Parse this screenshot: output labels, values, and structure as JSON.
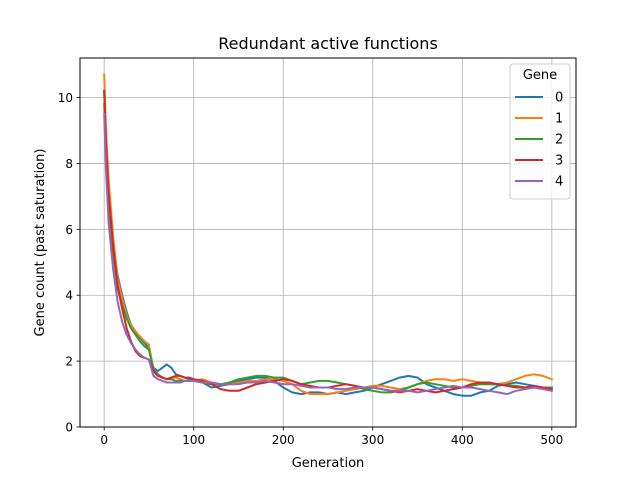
{
  "chart_data": {
    "type": "line",
    "title": "Redundant active functions",
    "xlabel": "Generation",
    "ylabel": "Gene count (past saturation)",
    "xlim": [
      -27,
      527
    ],
    "ylim": [
      0,
      11.2
    ],
    "xticks": [
      0,
      100,
      200,
      300,
      400,
      500
    ],
    "yticks": [
      0,
      2,
      4,
      6,
      8,
      10
    ],
    "grid": true,
    "legend": {
      "title": "Gene",
      "placement": "top-right"
    },
    "x": [
      0,
      2,
      5,
      10,
      15,
      20,
      25,
      30,
      35,
      40,
      45,
      50,
      55,
      60,
      65,
      70,
      75,
      80,
      85,
      90,
      95,
      100,
      110,
      120,
      130,
      140,
      150,
      160,
      170,
      180,
      190,
      200,
      210,
      220,
      230,
      240,
      250,
      260,
      270,
      280,
      290,
      300,
      310,
      320,
      330,
      340,
      350,
      360,
      370,
      380,
      390,
      400,
      410,
      420,
      430,
      440,
      450,
      460,
      470,
      480,
      490,
      500
    ],
    "series": [
      {
        "name": "0",
        "color": "#1f77b4",
        "values": [
          10.2,
          8.5,
          7.0,
          5.6,
          4.6,
          4.0,
          3.5,
          3.1,
          2.9,
          2.7,
          2.55,
          2.4,
          1.8,
          1.7,
          1.8,
          1.9,
          1.8,
          1.6,
          1.55,
          1.5,
          1.45,
          1.4,
          1.35,
          1.2,
          1.25,
          1.3,
          1.4,
          1.45,
          1.5,
          1.5,
          1.4,
          1.2,
          1.05,
          1.0,
          1.05,
          1.05,
          1.0,
          1.05,
          1.0,
          1.05,
          1.1,
          1.2,
          1.3,
          1.4,
          1.5,
          1.55,
          1.5,
          1.3,
          1.2,
          1.1,
          1.0,
          0.95,
          0.95,
          1.05,
          1.1,
          1.25,
          1.3,
          1.35,
          1.3,
          1.25,
          1.2,
          1.2
        ]
      },
      {
        "name": "1",
        "color": "#ff7f0e",
        "values": [
          10.7,
          9.0,
          7.5,
          5.8,
          4.5,
          3.9,
          3.4,
          3.1,
          2.9,
          2.75,
          2.6,
          2.5,
          1.75,
          1.6,
          1.5,
          1.45,
          1.5,
          1.5,
          1.45,
          1.4,
          1.4,
          1.4,
          1.45,
          1.35,
          1.3,
          1.3,
          1.35,
          1.4,
          1.4,
          1.45,
          1.45,
          1.4,
          1.3,
          1.1,
          1.0,
          1.0,
          1.0,
          1.05,
          1.1,
          1.15,
          1.2,
          1.25,
          1.25,
          1.2,
          1.15,
          1.2,
          1.3,
          1.4,
          1.45,
          1.45,
          1.4,
          1.45,
          1.4,
          1.35,
          1.3,
          1.3,
          1.35,
          1.45,
          1.55,
          1.6,
          1.55,
          1.45
        ]
      },
      {
        "name": "2",
        "color": "#2ca02c",
        "values": [
          9.8,
          8.2,
          6.8,
          5.3,
          4.2,
          3.7,
          3.3,
          3.0,
          2.8,
          2.6,
          2.45,
          2.35,
          1.75,
          1.6,
          1.5,
          1.45,
          1.45,
          1.4,
          1.4,
          1.4,
          1.4,
          1.4,
          1.35,
          1.3,
          1.3,
          1.35,
          1.45,
          1.5,
          1.55,
          1.55,
          1.5,
          1.5,
          1.4,
          1.3,
          1.35,
          1.4,
          1.4,
          1.35,
          1.3,
          1.25,
          1.15,
          1.1,
          1.05,
          1.05,
          1.1,
          1.2,
          1.3,
          1.35,
          1.3,
          1.25,
          1.2,
          1.2,
          1.25,
          1.3,
          1.3,
          1.3,
          1.25,
          1.25,
          1.2,
          1.2,
          1.2,
          1.2
        ]
      },
      {
        "name": "3",
        "color": "#d62728",
        "values": [
          10.2,
          8.6,
          7.1,
          5.5,
          4.3,
          3.6,
          3.0,
          2.6,
          2.3,
          2.15,
          2.1,
          2.05,
          1.7,
          1.55,
          1.5,
          1.45,
          1.5,
          1.55,
          1.55,
          1.5,
          1.5,
          1.45,
          1.4,
          1.3,
          1.15,
          1.1,
          1.1,
          1.2,
          1.3,
          1.35,
          1.4,
          1.45,
          1.4,
          1.3,
          1.25,
          1.2,
          1.2,
          1.25,
          1.3,
          1.25,
          1.2,
          1.2,
          1.15,
          1.1,
          1.05,
          1.1,
          1.15,
          1.1,
          1.05,
          1.1,
          1.15,
          1.2,
          1.3,
          1.35,
          1.35,
          1.3,
          1.25,
          1.2,
          1.2,
          1.25,
          1.2,
          1.15
        ]
      },
      {
        "name": "4",
        "color": "#9467bd",
        "values": [
          9.5,
          7.8,
          6.2,
          4.8,
          3.8,
          3.2,
          2.8,
          2.55,
          2.35,
          2.2,
          2.1,
          2.05,
          1.55,
          1.45,
          1.4,
          1.35,
          1.35,
          1.35,
          1.35,
          1.4,
          1.4,
          1.4,
          1.35,
          1.35,
          1.3,
          1.3,
          1.3,
          1.35,
          1.35,
          1.4,
          1.35,
          1.3,
          1.3,
          1.25,
          1.2,
          1.2,
          1.2,
          1.15,
          1.15,
          1.2,
          1.2,
          1.2,
          1.15,
          1.1,
          1.1,
          1.1,
          1.05,
          1.1,
          1.15,
          1.2,
          1.25,
          1.2,
          1.2,
          1.15,
          1.1,
          1.05,
          1.0,
          1.1,
          1.15,
          1.2,
          1.15,
          1.1
        ]
      }
    ]
  }
}
